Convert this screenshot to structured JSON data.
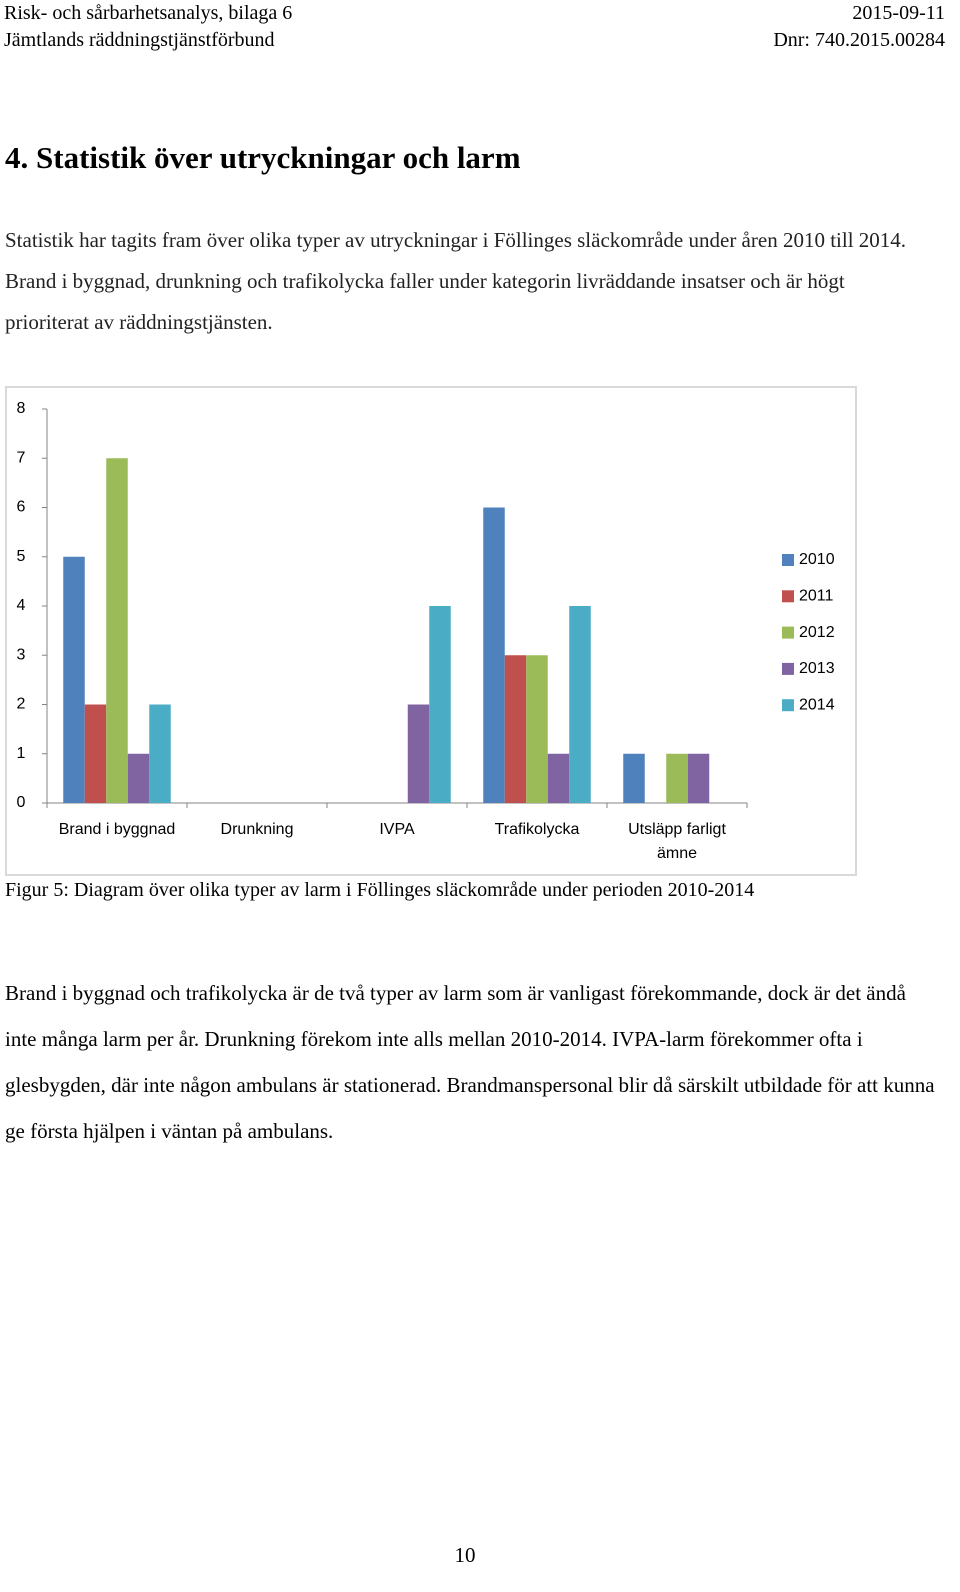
{
  "header": {
    "left": [
      "Risk- och sårbarhetsanalys, bilaga 6",
      "Jämtlands räddningstjänstförbund"
    ],
    "right": [
      "2015-09-11",
      "Dnr: 740.2015.00284"
    ]
  },
  "heading": "4. Statistik över utryckningar och larm",
  "paragraphs": [
    "Statistik har tagits fram över olika typer av utryckningar i Föllinges släckområde under åren 2010 till 2014. Brand i byggnad, drunkning och trafikolycka faller under kategorin livräddande insatser och är högt prioriterat av räddningstjänsten.",
    "Brand i byggnad och trafikolycka är de två typer av larm som är vanligast förekommande, dock är det ändå inte många larm per år. Drunkning förekom inte alls mellan 2010-2014. IVPA-larm förekommer ofta i glesbygden, där inte någon ambulans är stationerad. Brandmanspersonal blir då särskilt utbildade för att kunna ge första hjälpen i väntan på ambulans."
  ],
  "chart_data": {
    "type": "bar",
    "categories": [
      "Brand i byggnad",
      "Drunkning",
      "IVPA",
      "Trafikolycka",
      "Utsläpp farligt ämne"
    ],
    "series": [
      {
        "name": "2010",
        "color": "#4f81bd",
        "values": [
          5,
          0,
          0,
          6,
          1
        ]
      },
      {
        "name": "2011",
        "color": "#c0504d",
        "values": [
          2,
          0,
          0,
          3,
          0
        ]
      },
      {
        "name": "2012",
        "color": "#9bbb59",
        "values": [
          7,
          0,
          0,
          3,
          1
        ]
      },
      {
        "name": "2013",
        "color": "#8064a2",
        "values": [
          1,
          0,
          2,
          1,
          1
        ]
      },
      {
        "name": "2014",
        "color": "#4bacc6",
        "values": [
          2,
          0,
          4,
          4,
          0
        ]
      }
    ],
    "ylim": [
      0,
      8
    ],
    "yticks": [
      0,
      1,
      2,
      3,
      4,
      5,
      6,
      7,
      8
    ],
    "legend": "right"
  },
  "caption": "Figur 5: Diagram över olika typer av larm i Föllinges släckområde under perioden 2010-2014",
  "page_number": "10"
}
